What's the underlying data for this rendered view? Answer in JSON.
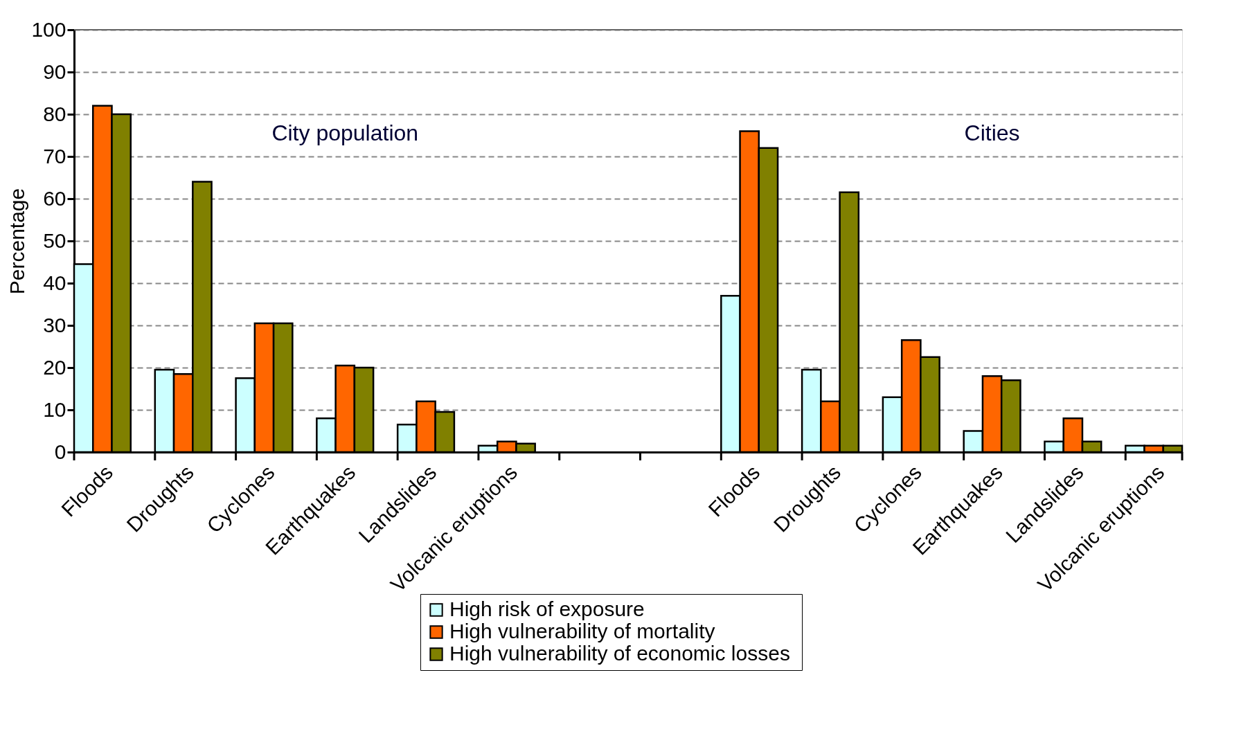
{
  "chart_data": {
    "type": "bar",
    "ylabel": "Percentage",
    "categories": [
      "Floods",
      "Droughts",
      "Cyclones",
      "Earthquakes",
      "Landslides",
      "Volcanic eruptions",
      null,
      null,
      "Floods",
      "Droughts",
      "Cyclones",
      "Earthquakes",
      "Landslides",
      "Volcanic eruptions"
    ],
    "series": [
      {
        "name": "High risk of exposure",
        "color": "#ccffff",
        "values": [
          44.5,
          19.5,
          17.5,
          8,
          6.5,
          1.5,
          null,
          null,
          37,
          19.5,
          13,
          5,
          2.5,
          1.5
        ]
      },
      {
        "name": "High vulnerability  of mortality",
        "color": "#ff6600",
        "values": [
          82,
          18.5,
          30.5,
          20.5,
          12,
          2.5,
          null,
          null,
          76,
          12,
          26.5,
          18,
          8,
          1.5
        ]
      },
      {
        "name": "High vulnerability  of economic losses",
        "color": "#808000",
        "values": [
          80,
          64,
          30.5,
          20,
          9.5,
          2,
          null,
          null,
          72,
          61.5,
          22.5,
          17,
          2.5,
          1.5
        ]
      }
    ],
    "ylim": [
      0,
      100
    ],
    "yticks": [
      0,
      10,
      20,
      30,
      40,
      50,
      60,
      70,
      80,
      90,
      100
    ],
    "grid": "y",
    "legend": "bottom",
    "annotations": [
      "City population",
      "Cities"
    ]
  }
}
